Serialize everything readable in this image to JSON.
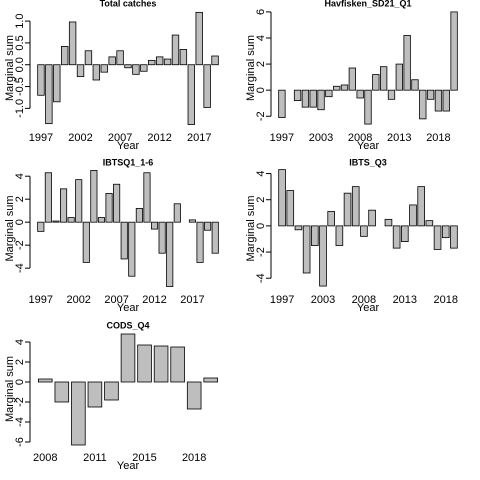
{
  "chart_data": [
    {
      "type": "bar",
      "title": "Total catches",
      "x_label": "Year",
      "y_label": "Marginal sum",
      "color": "#bebebe",
      "categories": [
        "1997",
        null,
        null,
        null,
        null,
        "2002",
        null,
        null,
        null,
        null,
        "2007",
        null,
        null,
        null,
        null,
        "2012",
        null,
        null,
        null,
        null,
        "2017",
        null,
        null
      ],
      "values": [
        -0.7,
        -1.35,
        -0.85,
        0.42,
        0.98,
        -0.27,
        0.32,
        -0.35,
        -0.17,
        0.18,
        0.32,
        -0.07,
        -0.22,
        -0.15,
        0.1,
        0.18,
        0.13,
        0.68,
        0.35,
        -1.37,
        1.2,
        -0.98,
        0.2
      ],
      "ylim": [
        -1.45,
        1.3
      ],
      "yticks": [
        {
          "value": -1,
          "label": "-1.0"
        },
        {
          "value": -0.5,
          "label": "-0.5"
        },
        {
          "value": 0,
          "label": "0.0"
        },
        {
          "value": 0.5,
          "label": "0.5"
        },
        {
          "value": 1,
          "label": "1.0"
        }
      ]
    },
    {
      "type": "bar",
      "title": "Havfisken_SD21_Q1",
      "x_label": "Year",
      "y_label": "Marginal sum",
      "color": "#bebebe",
      "categories": [
        "1997",
        null,
        null,
        null,
        null,
        "2003",
        null,
        null,
        null,
        null,
        "2008",
        null,
        null,
        null,
        null,
        "2013",
        null,
        null,
        null,
        null,
        "2018",
        null,
        null
      ],
      "values": [
        -2.1,
        null,
        -0.8,
        -1.3,
        -1.3,
        -1.5,
        -0.5,
        0.3,
        0.4,
        1.7,
        -0.6,
        -2.6,
        1.2,
        1.8,
        -0.7,
        2.0,
        4.2,
        0.8,
        -2.2,
        -0.7,
        -1.6,
        -1.6,
        6.0
      ],
      "ylim": [
        -2.9,
        6.3
      ],
      "yticks": [
        -2,
        0,
        2,
        4,
        6
      ]
    },
    {
      "type": "bar",
      "title": "IBTSQ1_1-6",
      "x_label": "Year",
      "y_label": "Marginal sum",
      "color": "#bebebe",
      "categories": [
        "1997",
        null,
        null,
        null,
        null,
        "2002",
        null,
        null,
        null,
        null,
        "2007",
        null,
        null,
        null,
        null,
        "2012",
        null,
        null,
        null,
        null,
        "2017",
        null,
        null,
        null
      ],
      "values": [
        -0.8,
        4.3,
        0.1,
        2.9,
        0.4,
        3.7,
        -3.5,
        4.5,
        0.4,
        2.5,
        3.3,
        -3.2,
        -4.7,
        1.2,
        4.3,
        -0.6,
        -2.7,
        -5.6,
        1.6,
        null,
        0.2,
        -3.5,
        -0.7,
        -2.7
      ],
      "ylim": [
        -5.9,
        4.8
      ],
      "yticks": [
        -4,
        -2,
        0,
        2,
        4
      ]
    },
    {
      "type": "bar",
      "title": "IBTS_Q3",
      "x_label": "Year",
      "y_label": "Marginal sum",
      "color": "#bebebe",
      "categories": [
        "1997",
        null,
        null,
        null,
        null,
        "2003",
        null,
        null,
        null,
        null,
        "2008",
        null,
        null,
        null,
        null,
        "2013",
        null,
        null,
        null,
        null,
        "2018",
        null
      ],
      "values": [
        4.3,
        2.7,
        -0.3,
        -3.6,
        -1.5,
        -4.6,
        1.1,
        -1.5,
        2.5,
        3.0,
        -0.8,
        1.2,
        null,
        0.5,
        -1.7,
        -1.2,
        1.6,
        3.0,
        0.4,
        -1.8,
        -0.9,
        -1.7
      ],
      "ylim": [
        -4.9,
        4.5
      ],
      "yticks": [
        -4,
        -2,
        0,
        2,
        4
      ]
    },
    {
      "type": "bar",
      "title": "CODS_Q4",
      "x_label": "Year",
      "y_label": "Marginal sum",
      "color": "#bebebe",
      "categories": [
        "2008",
        null,
        null,
        "2011",
        null,
        null,
        "2015",
        null,
        null,
        "2018",
        null
      ],
      "values": [
        0.3,
        -2.0,
        -6.3,
        -2.5,
        -1.8,
        4.8,
        3.7,
        3.6,
        3.5,
        -2.7,
        0.4
      ],
      "ylim": [
        -6.6,
        5.2
      ],
      "yticks": [
        -6,
        -4,
        -2,
        0,
        2,
        4
      ]
    }
  ]
}
